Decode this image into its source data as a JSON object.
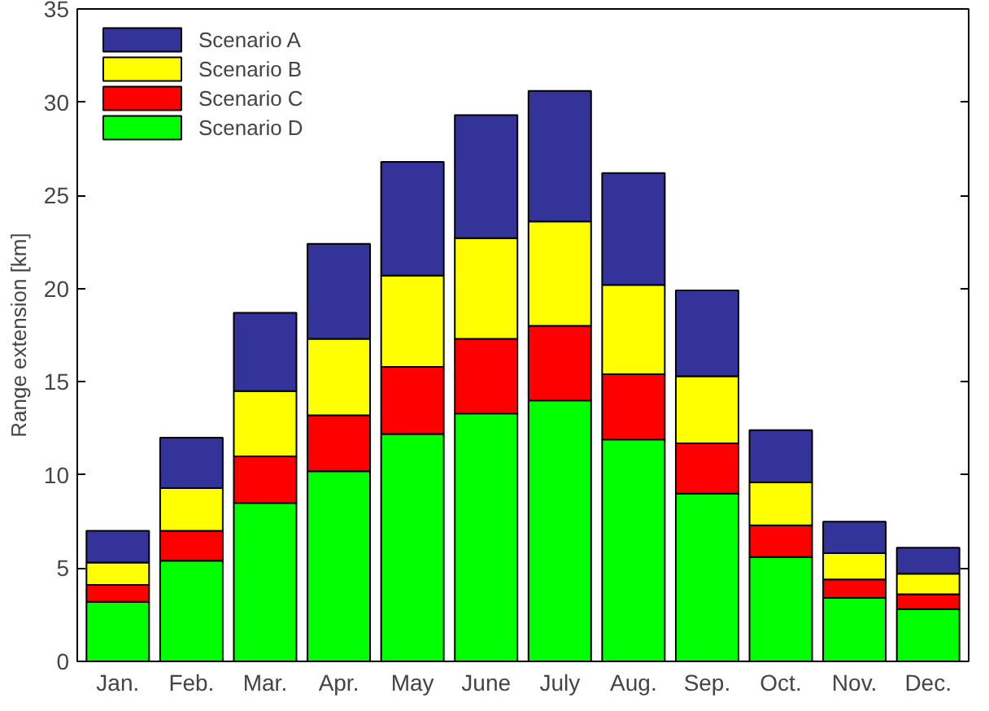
{
  "chart_data": {
    "type": "bar",
    "stacked": true,
    "ylabel": "Range extension [km]",
    "categories": [
      "Jan.",
      "Feb.",
      "Mar.",
      "Apr.",
      "May",
      "June",
      "July",
      "Aug.",
      "Sep.",
      "Oct.",
      "Nov.",
      "Dec."
    ],
    "ylim": [
      0,
      35
    ],
    "yticks": [
      0,
      5,
      10,
      15,
      20,
      25,
      30,
      35
    ],
    "legend": "top left",
    "series": [
      {
        "name": "Scenario D",
        "color": "#00ff00",
        "values": [
          3.2,
          5.4,
          8.5,
          10.2,
          12.2,
          13.3,
          14.0,
          11.9,
          9.0,
          5.6,
          3.4,
          2.8
        ]
      },
      {
        "name": "Scenario C",
        "color": "#ff0000",
        "values": [
          0.9,
          1.6,
          2.5,
          3.0,
          3.6,
          4.0,
          4.0,
          3.5,
          2.7,
          1.7,
          1.0,
          0.8
        ]
      },
      {
        "name": "Scenario B",
        "color": "#ffff00",
        "values": [
          1.2,
          2.3,
          3.5,
          4.1,
          4.9,
          5.4,
          5.6,
          4.8,
          3.6,
          2.3,
          1.4,
          1.1
        ]
      },
      {
        "name": "Scenario A",
        "color": "#333399",
        "values": [
          1.7,
          2.7,
          4.2,
          5.1,
          6.1,
          6.6,
          7.0,
          6.0,
          4.6,
          2.8,
          1.7,
          1.4
        ]
      }
    ]
  }
}
